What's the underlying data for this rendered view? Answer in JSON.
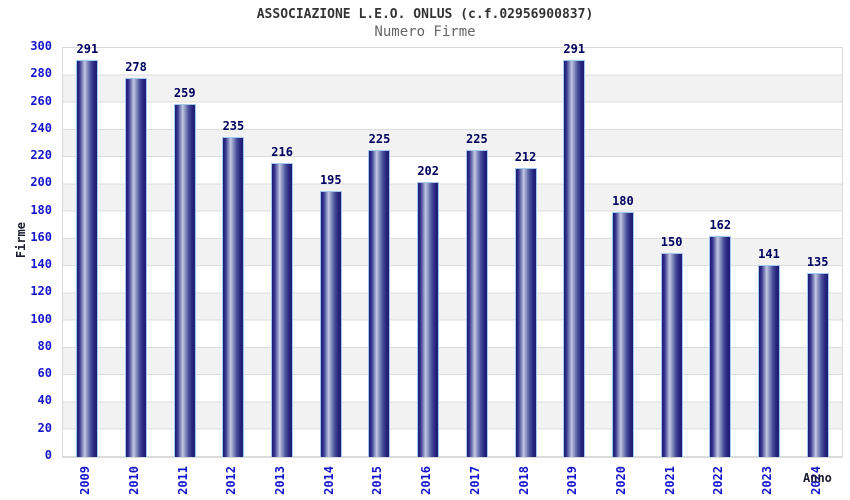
{
  "chart_data": {
    "type": "bar",
    "title": "ASSOCIAZIONE L.E.O. ONLUS (c.f.02956900837)",
    "subtitle": "Numero Firme",
    "xlabel": "Anno",
    "ylabel": "Firme",
    "categories": [
      "2009",
      "2010",
      "2011",
      "2012",
      "2013",
      "2014",
      "2015",
      "2016",
      "2017",
      "2018",
      "2019",
      "2020",
      "2021",
      "2022",
      "2023",
      "2024"
    ],
    "values": [
      291,
      278,
      259,
      235,
      216,
      195,
      225,
      202,
      225,
      212,
      291,
      180,
      150,
      162,
      141,
      135
    ],
    "ylim": [
      0,
      300
    ],
    "ytick_step": 20,
    "grid": "horizontal",
    "legend": "none",
    "colors": {
      "tick_labels": "#1515cd",
      "value_labels": "#00005f",
      "title": "#333333",
      "subtitle": "#666666",
      "axis_titles": "#1a1a2e",
      "bar_dark": "#1c1c74",
      "bar_light": "#c3c9e3",
      "bar_border": "#a3c8ee",
      "band": "#f2f2f2",
      "gridline": "#dcdcdc",
      "background": "#ffffff"
    }
  }
}
